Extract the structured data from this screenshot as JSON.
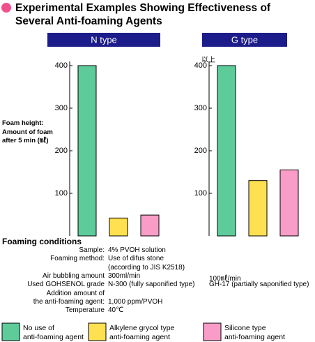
{
  "chart_data": {
    "type": "bar",
    "title": "Experimental Examples Showing Effectiveness of\nSeveral Anti-foaming Agents",
    "y_label": "Foam height:\nAmount of foam\nafter 5 min (㎖)",
    "categories": [
      "N type",
      "G type"
    ],
    "series": [
      {
        "name": "No use of\nanti-foaming agent",
        "color": "#5dcc9a",
        "values": [
          400,
          400
        ]
      },
      {
        "name": "Alkylene grycol type\nanti-foaming agent",
        "color": "#ffe050",
        "values": [
          42,
          130
        ]
      },
      {
        "name": "Silicone type\nanti-foaming agent",
        "color": "#f99cc8",
        "values": [
          49,
          155
        ]
      }
    ],
    "annotations": [
      "以上"
    ],
    "ylim": [
      0,
      400
    ],
    "yticks": [
      100,
      200,
      300,
      400
    ],
    "grid": false
  },
  "conditions": {
    "title": "Foaming conditions",
    "rows": [
      {
        "label": "Sample:",
        "n": "4% PVOH solution"
      },
      {
        "label": "Foaming method:",
        "n": "Use of difus stone"
      },
      {
        "n": "(according to JIS K2518)"
      },
      {
        "label": "Air bubbling amount",
        "n": "300ml/min",
        "g": "100㎖/min"
      },
      {
        "label": "Used GOHSENOL grade",
        "n": "N-300 (fully saponified type)",
        "g": "GH-17 (partially saponified type)"
      },
      {
        "label": "Addition amount of"
      },
      {
        "label": "the anti-foaming agent:",
        "n": "1,000 ppm/PVOH"
      },
      {
        "label": "Temperature",
        "n": "40℃"
      }
    ]
  }
}
